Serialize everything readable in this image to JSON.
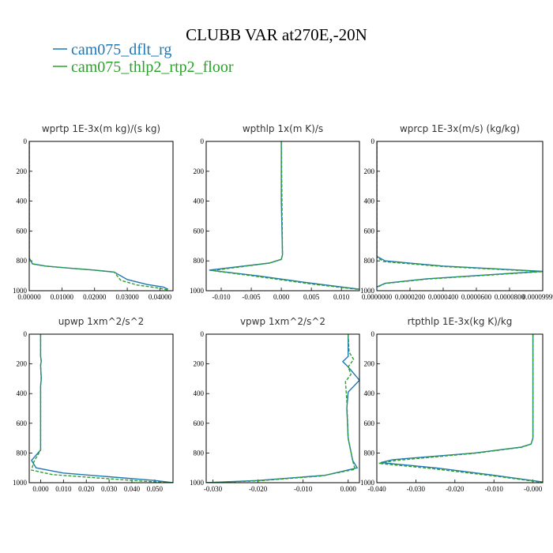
{
  "figure": {
    "title": "CLUBB VAR at270E,-20N",
    "legend": [
      {
        "label": "cam075_dflt_rg",
        "color": "#1f77b4"
      },
      {
        "label": "cam075_thlp2_rtp2_floor",
        "color": "#2ca02c"
      }
    ]
  },
  "chart_data": [
    {
      "type": "line",
      "title": "wprtp  1E-3x(m kg)/(s kg)",
      "xlim": [
        0,
        0.044
      ],
      "ylim": [
        0,
        1000
      ],
      "y_inverted": true,
      "xticks": [
        0,
        0.01,
        0.02,
        0.03,
        0.04
      ],
      "xtick_labels": [
        "0.00000",
        "0.01000",
        "0.02000",
        "0.03000",
        "0.04000"
      ],
      "yticks": [
        0,
        200,
        400,
        600,
        800,
        1000
      ],
      "ytick_labels": [
        "0",
        "200",
        "400",
        "600",
        "800",
        "1000"
      ],
      "series": [
        {
          "name": "cam075_dflt_rg",
          "color": "#1f77b4",
          "dash": "",
          "x": [
            0,
            0,
            0.001,
            0.005,
            0.012,
            0.02,
            0.026,
            0.03,
            0.036,
            0.041,
            0.0425
          ],
          "y": [
            0,
            780,
            820,
            835,
            848,
            862,
            875,
            925,
            958,
            975,
            990
          ]
        },
        {
          "name": "cam075_thlp2_rtp2_floor",
          "color": "#2ca02c",
          "dash": "4,2",
          "x": [
            0,
            0,
            0.001,
            0.005,
            0.012,
            0.02,
            0.026,
            0.028,
            0.033,
            0.039,
            0.0425
          ],
          "y": [
            0,
            780,
            820,
            835,
            848,
            862,
            875,
            930,
            962,
            980,
            995
          ]
        }
      ]
    },
    {
      "type": "line",
      "title": "wpthlp  1x(m K)/s",
      "xlim": [
        -0.0125,
        0.013
      ],
      "ylim": [
        0,
        1000
      ],
      "y_inverted": true,
      "xticks": [
        -0.01,
        -0.005,
        0,
        0.005,
        0.01
      ],
      "xtick_labels": [
        "-0.010",
        "-0.005",
        "0.000",
        "0.005",
        "0.010"
      ],
      "yticks": [
        0,
        200,
        400,
        600,
        800,
        1000
      ],
      "ytick_labels": [
        "0",
        "200",
        "400",
        "600",
        "800",
        "1000"
      ],
      "series": [
        {
          "name": "cam075_dflt_rg",
          "color": "#1f77b4",
          "dash": "",
          "x": [
            0,
            0,
            0.0002,
            0,
            -0.002,
            -0.012,
            -0.004,
            0.005,
            0.013
          ],
          "y": [
            0,
            400,
            760,
            790,
            815,
            862,
            900,
            950,
            990
          ]
        },
        {
          "name": "cam075_thlp2_rtp2_floor",
          "color": "#2ca02c",
          "dash": "4,2",
          "x": [
            0,
            0.0001,
            0.0002,
            0,
            -0.002,
            -0.0115,
            -0.004,
            0.005,
            0.013
          ],
          "y": [
            0,
            400,
            760,
            790,
            815,
            865,
            905,
            955,
            992
          ]
        }
      ]
    },
    {
      "type": "line",
      "title": "wprcp  1E-3x(m/s) (kg/kg)",
      "xlim": [
        0,
        0.0001
      ],
      "ylim": [
        0,
        1000
      ],
      "y_inverted": true,
      "xticks": [
        0,
        2e-05,
        4e-05,
        6e-05,
        8e-05,
        0.0001
      ],
      "xtick_labels": [
        "0.0000000",
        "0.0000200",
        "0.0000400",
        "0.0000600",
        "0.0000800",
        "0.0000999999"
      ],
      "yticks": [
        0,
        200,
        400,
        600,
        800,
        1000
      ],
      "ytick_labels": [
        "0",
        "200",
        "400",
        "600",
        "800",
        "1000"
      ],
      "series": [
        {
          "name": "cam075_dflt_rg",
          "color": "#1f77b4",
          "dash": "",
          "x": [
            0,
            0,
            5e-06,
            4e-05,
            0.0001,
            3e-05,
            5e-06,
            0
          ],
          "y": [
            0,
            770,
            800,
            835,
            870,
            920,
            950,
            975
          ]
        },
        {
          "name": "cam075_thlp2_rtp2_floor",
          "color": "#2ca02c",
          "dash": "4,2",
          "x": [
            0,
            0,
            4e-06,
            4e-05,
            0.0001,
            3e-05,
            5e-06,
            0
          ],
          "y": [
            0,
            775,
            805,
            838,
            872,
            922,
            952,
            978
          ]
        }
      ]
    },
    {
      "type": "line",
      "title": "upwp  1xm^2/s^2",
      "xlim": [
        -0.005,
        0.058
      ],
      "ylim": [
        0,
        1000
      ],
      "y_inverted": true,
      "xticks": [
        0,
        0.01,
        0.02,
        0.03,
        0.04,
        0.05
      ],
      "xtick_labels": [
        "0.000",
        "0.010",
        "0.020",
        "0.030",
        "0.040",
        "0.050"
      ],
      "yticks": [
        0,
        200,
        400,
        600,
        800,
        1000
      ],
      "ytick_labels": [
        "0",
        "200",
        "400",
        "600",
        "800",
        "1000"
      ],
      "series": [
        {
          "name": "cam075_dflt_rg",
          "color": "#1f77b4",
          "dash": "",
          "x": [
            0,
            0,
            0.0003,
            0,
            0.0003,
            0,
            0,
            -0.004,
            -0.002,
            0.01,
            0.03,
            0.05,
            0.058
          ],
          "y": [
            0,
            150,
            180,
            210,
            300,
            350,
            780,
            850,
            900,
            935,
            960,
            985,
            1000
          ]
        },
        {
          "name": "cam075_thlp2_rtp2_floor",
          "color": "#2ca02c",
          "dash": "4,2",
          "x": [
            0,
            0,
            0.0002,
            0,
            0.0002,
            0,
            0,
            -0.003,
            -0.004,
            0.005,
            0.025,
            0.045,
            0.058
          ],
          "y": [
            0,
            150,
            180,
            210,
            300,
            350,
            780,
            860,
            915,
            945,
            968,
            990,
            1000
          ]
        }
      ]
    },
    {
      "type": "line",
      "title": "vpwp  1xm^2/s^2",
      "xlim": [
        -0.0315,
        0.0025
      ],
      "ylim": [
        0,
        1000
      ],
      "y_inverted": true,
      "xticks": [
        -0.03,
        -0.02,
        -0.01,
        0
      ],
      "xtick_labels": [
        "-0.030",
        "-0.020",
        "-0.010",
        "0.000"
      ],
      "yticks": [
        0,
        200,
        400,
        600,
        800,
        1000
      ],
      "ytick_labels": [
        "0",
        "200",
        "400",
        "600",
        "800",
        "1000"
      ],
      "series": [
        {
          "name": "cam075_dflt_rg",
          "color": "#1f77b4",
          "dash": "",
          "x": [
            0,
            0,
            -0.0012,
            0,
            0.0025,
            0,
            -0.0003,
            0,
            0.001,
            0.002,
            -0.005,
            -0.02,
            -0.0315
          ],
          "y": [
            0,
            150,
            185,
            220,
            310,
            390,
            500,
            700,
            850,
            900,
            950,
            985,
            1000
          ]
        },
        {
          "name": "cam075_thlp2_rtp2_floor",
          "color": "#2ca02c",
          "dash": "4,2",
          "x": [
            0,
            0.0002,
            0.0012,
            0,
            0.0006,
            -0.0006,
            -0.0003,
            0,
            0.001,
            0.0015,
            -0.006,
            -0.02,
            -0.0315
          ],
          "y": [
            0,
            120,
            170,
            220,
            270,
            320,
            450,
            700,
            850,
            910,
            955,
            988,
            1000
          ]
        }
      ]
    },
    {
      "type": "line",
      "title": "rtpthlp  1E-3x(kg K)/kg",
      "xlim": [
        -0.04,
        0.0025
      ],
      "ylim": [
        0,
        1000
      ],
      "y_inverted": true,
      "xticks": [
        -0.04,
        -0.03,
        -0.02,
        -0.01,
        0
      ],
      "xtick_labels": [
        "-0.040",
        "-0.030",
        "-0.020",
        "-0.010",
        "-0.000"
      ],
      "yticks": [
        0,
        200,
        400,
        600,
        800,
        1000
      ],
      "ytick_labels": [
        "0",
        "200",
        "400",
        "600",
        "800",
        "1000"
      ],
      "series": [
        {
          "name": "cam075_dflt_rg",
          "color": "#1f77b4",
          "dash": "",
          "x": [
            0,
            0,
            -0.0005,
            -0.003,
            -0.015,
            -0.036,
            -0.039,
            -0.025,
            -0.01,
            0.0025
          ],
          "y": [
            0,
            700,
            740,
            760,
            800,
            845,
            865,
            900,
            950,
            995
          ]
        },
        {
          "name": "cam075_thlp2_rtp2_floor",
          "color": "#2ca02c",
          "dash": "4,2",
          "x": [
            0,
            0,
            -0.0005,
            -0.003,
            -0.015,
            -0.035,
            -0.0395,
            -0.026,
            -0.01,
            0.0025
          ],
          "y": [
            0,
            700,
            740,
            762,
            802,
            850,
            870,
            905,
            955,
            998
          ]
        }
      ]
    }
  ]
}
